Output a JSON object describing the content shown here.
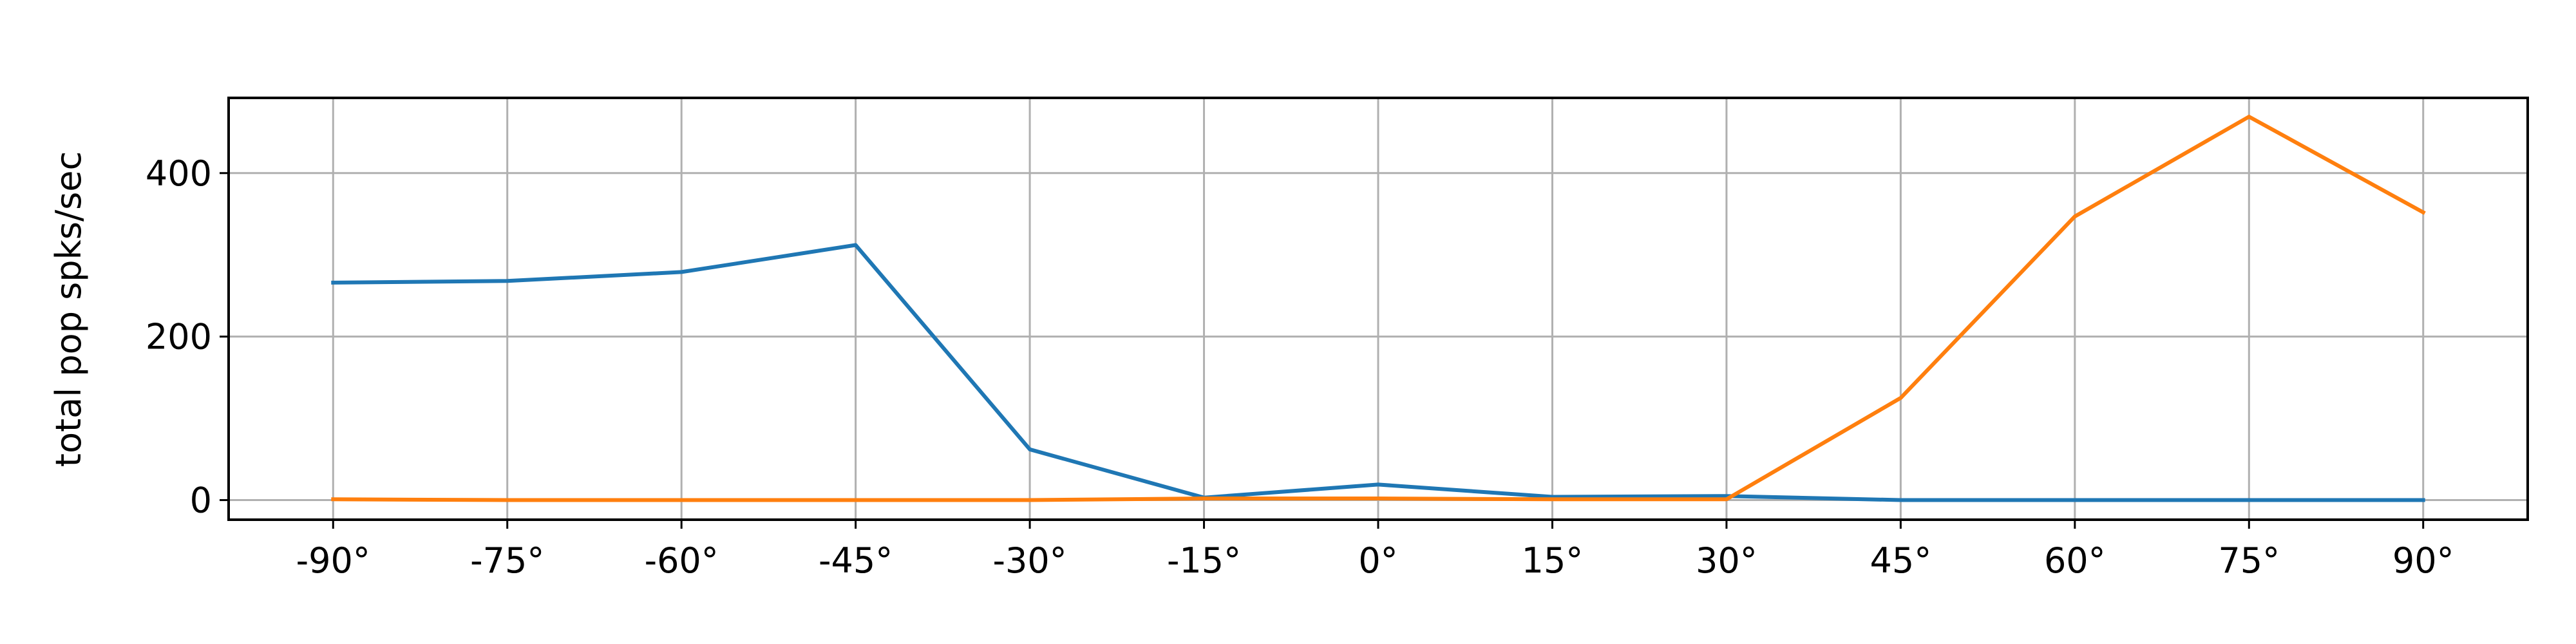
{
  "chart_data": {
    "type": "line",
    "title": "",
    "xlabel": "",
    "ylabel": "total pop spks/sec",
    "categories": [
      "-90°",
      "-75°",
      "-60°",
      "-45°",
      "-30°",
      "-15°",
      "0°",
      "15°",
      "30°",
      "45°",
      "60°",
      "75°",
      "90°"
    ],
    "x": [
      -90,
      -75,
      -60,
      -45,
      -30,
      -15,
      0,
      15,
      30,
      45,
      60,
      75,
      90
    ],
    "xlim": [
      -99,
      99
    ],
    "ylim": [
      -24,
      492
    ],
    "yticks": [
      0,
      200,
      400
    ],
    "ytick_labels": [
      "0",
      "200",
      "400"
    ],
    "grid": true,
    "legend": "none",
    "series": [
      {
        "color": "#1f77b4",
        "values": [
          266,
          268,
          279,
          312,
          62,
          3,
          19,
          4,
          5,
          0,
          0,
          0,
          0
        ]
      },
      {
        "color": "#ff7f0e",
        "values": [
          1,
          0,
          0,
          0,
          0,
          2,
          2,
          1,
          1,
          125,
          347,
          469,
          352
        ]
      }
    ]
  }
}
